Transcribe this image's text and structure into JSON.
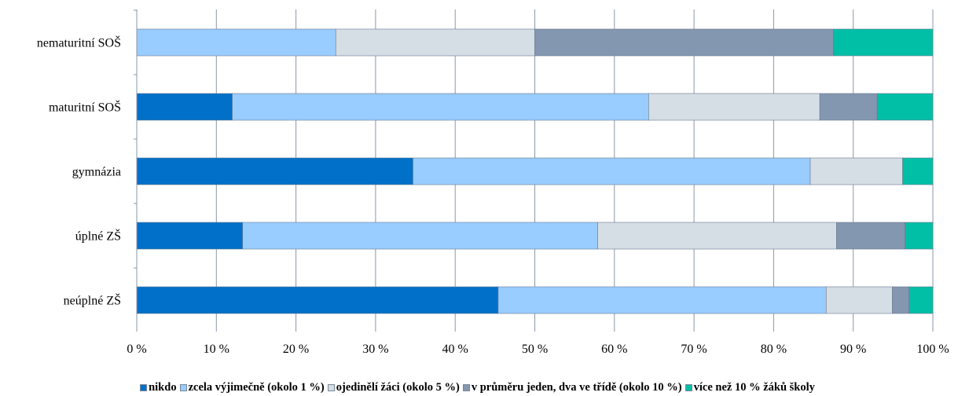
{
  "chart_data": {
    "type": "bar",
    "orientation": "horizontal",
    "stacked": true,
    "categories": [
      "nematuritní SOŠ",
      "maturitní SOŠ",
      "gymnázia",
      "úplné ZŠ",
      "neúplné ZŠ"
    ],
    "series": [
      {
        "name": "nikdo",
        "color": "#0070C8",
        "values": [
          0,
          12.0,
          34.7,
          13.3,
          45.4
        ]
      },
      {
        "name": "zcela výjimečně (okolo 1 %)",
        "color": "#99CCFF",
        "values": [
          25.0,
          52.3,
          49.9,
          44.6,
          41.2
        ]
      },
      {
        "name": "ojedinělí žáci (okolo 5 %)",
        "color": "#D5DDE5",
        "values": [
          25.0,
          21.5,
          11.6,
          30.0,
          8.3
        ]
      },
      {
        "name": "v průměru jeden, dva ve třídě (okolo 10 %)",
        "color": "#8497B0",
        "values": [
          37.5,
          7.2,
          0,
          8.6,
          2.1
        ]
      },
      {
        "name": "více než 10 % žáků školy",
        "color": "#00BFA6",
        "values": [
          12.5,
          7.0,
          3.8,
          3.5,
          3.0
        ]
      }
    ],
    "xlim": [
      0,
      100
    ],
    "xticks": [
      "0 %",
      "10 %",
      "20 %",
      "30 %",
      "40 %",
      "50 %",
      "60 %",
      "70 %",
      "80 %",
      "90 %",
      "100 %"
    ],
    "grid": "vertical",
    "legend": "bottom",
    "title": "",
    "xlabel": "",
    "ylabel": ""
  }
}
